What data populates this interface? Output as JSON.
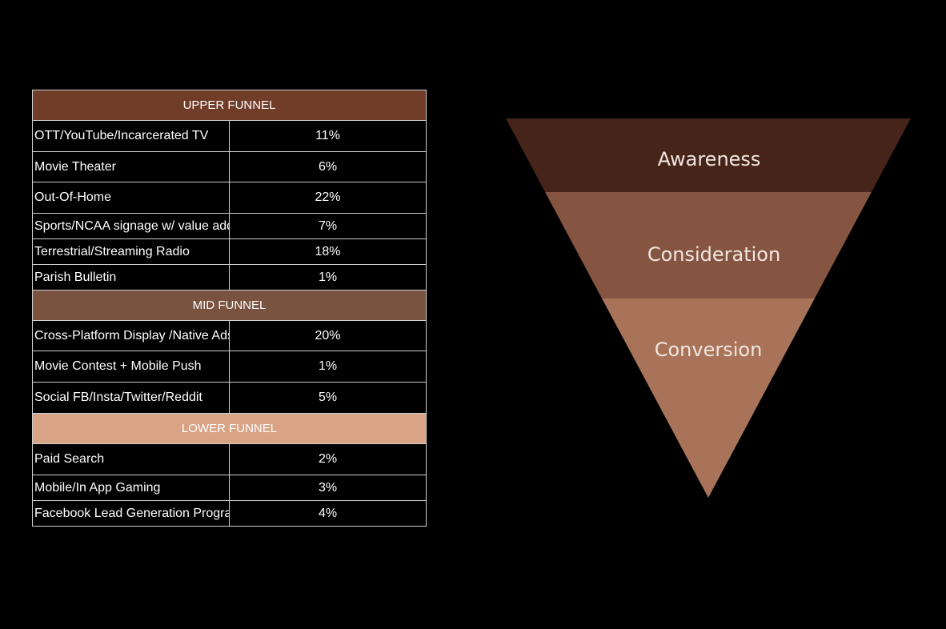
{
  "table": {
    "sections": [
      {
        "title": "UPPER FUNNEL",
        "color": "#713c28",
        "rows": [
          {
            "channel": "OTT/YouTube/Incarcerated TV",
            "share": "11%"
          },
          {
            "channel": "Movie Theater",
            "share": "6%"
          },
          {
            "channel": "Out-Of-Home",
            "share": "22%"
          },
          {
            "channel": "Sports/NCAA signage w/ value add",
            "share": "7%"
          },
          {
            "channel": "Terrestrial/Streaming Radio",
            "share": "18%"
          },
          {
            "channel": "Parish Bulletin",
            "share": "1%"
          }
        ]
      },
      {
        "title": "MID FUNNEL",
        "color": "#7a5240",
        "rows": [
          {
            "channel": "Cross-Platform Display /Native Ads (APD Page)",
            "share": "20%"
          },
          {
            "channel": "Movie Contest + Mobile Push",
            "share": "1%"
          },
          {
            "channel": "Social FB/Insta/Twitter/Reddit",
            "share": "5%"
          }
        ]
      },
      {
        "title": "LOWER FUNNEL",
        "color": "#d9a385",
        "rows": [
          {
            "channel": "Paid Search",
            "share": "2%"
          },
          {
            "channel": "Mobile/In App Gaming",
            "share": "3%"
          },
          {
            "channel": "Facebook Lead Generation Program",
            "share": "4%"
          }
        ]
      }
    ]
  },
  "funnel": {
    "stages": [
      {
        "label": "Awareness",
        "color": "#47241a"
      },
      {
        "label": "Consideration",
        "color": "#855541"
      },
      {
        "label": "Conversion",
        "color": "#a9735a"
      }
    ]
  }
}
